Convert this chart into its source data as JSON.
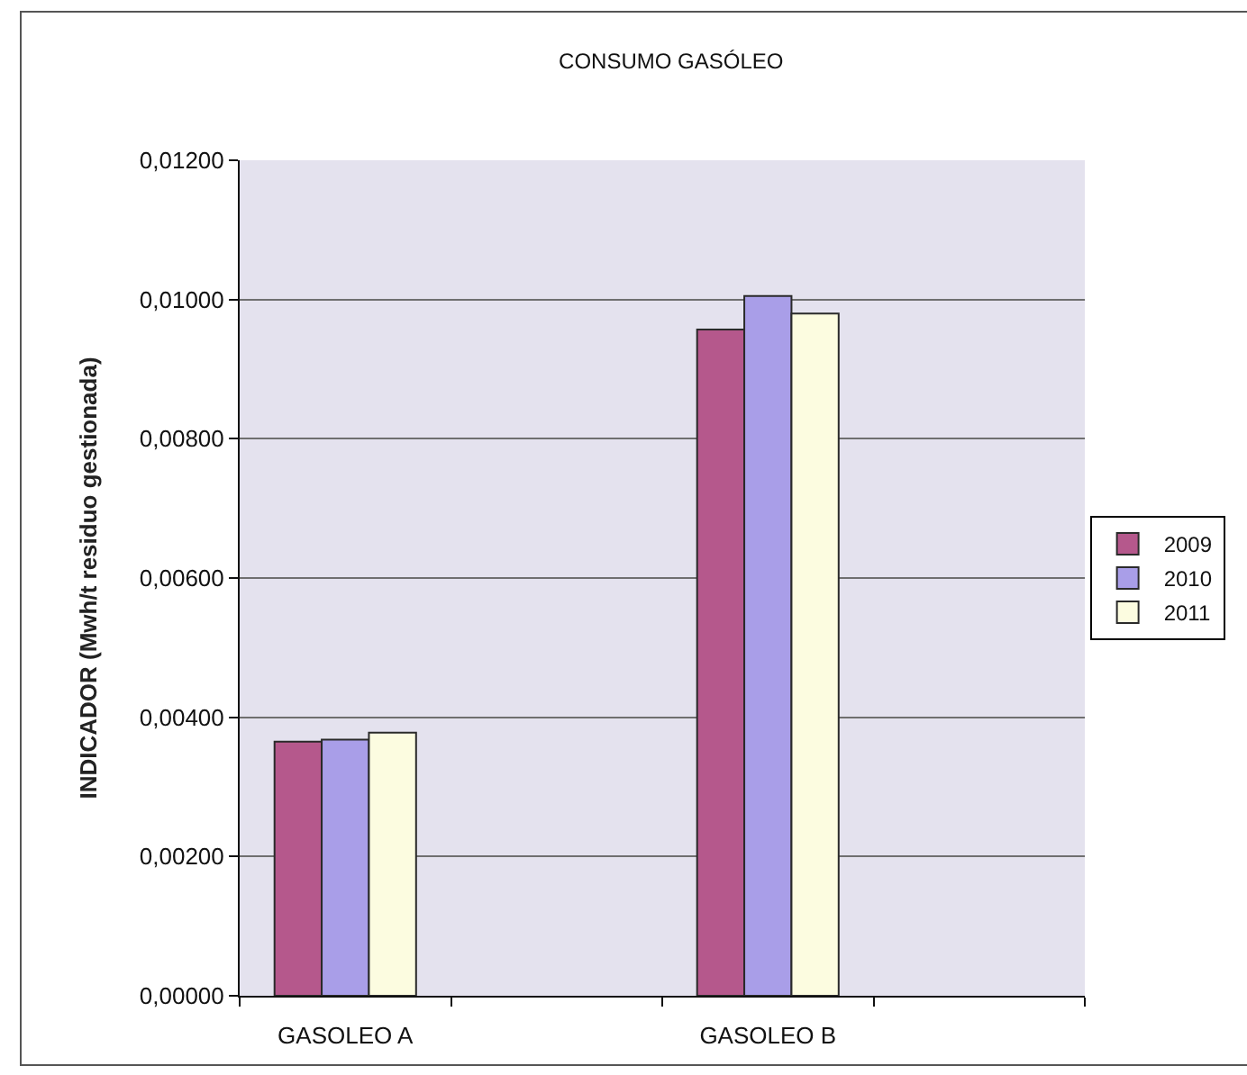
{
  "chart_data": {
    "type": "bar",
    "title": "CONSUMO GASÓLEO",
    "ylabel": "INDICADOR (Mwh/t residuo gestionada)",
    "categories": [
      "GASOLEO A",
      null,
      "GASOLEO B",
      null
    ],
    "series": [
      {
        "name": "2009",
        "color": "#b5588c",
        "values": [
          0.00365,
          null,
          0.00957,
          null
        ]
      },
      {
        "name": "2010",
        "color": "#a99ee8",
        "values": [
          0.00368,
          null,
          0.01005,
          null
        ]
      },
      {
        "name": "2011",
        "color": "#fcfce0",
        "values": [
          0.00378,
          null,
          0.0098,
          null
        ]
      }
    ],
    "ylim": [
      0,
      0.012
    ],
    "yticks": [
      {
        "value": 0,
        "label": "0,00000"
      },
      {
        "value": 0.002,
        "label": "0,00200"
      },
      {
        "value": 0.004,
        "label": "0,00400"
      },
      {
        "value": 0.006,
        "label": "0,00600"
      },
      {
        "value": 0.008,
        "label": "0,00800"
      },
      {
        "value": 0.01,
        "label": "0,01000"
      },
      {
        "value": 0.012,
        "label": "0,01200"
      }
    ],
    "grid": "y",
    "legend": "right"
  }
}
